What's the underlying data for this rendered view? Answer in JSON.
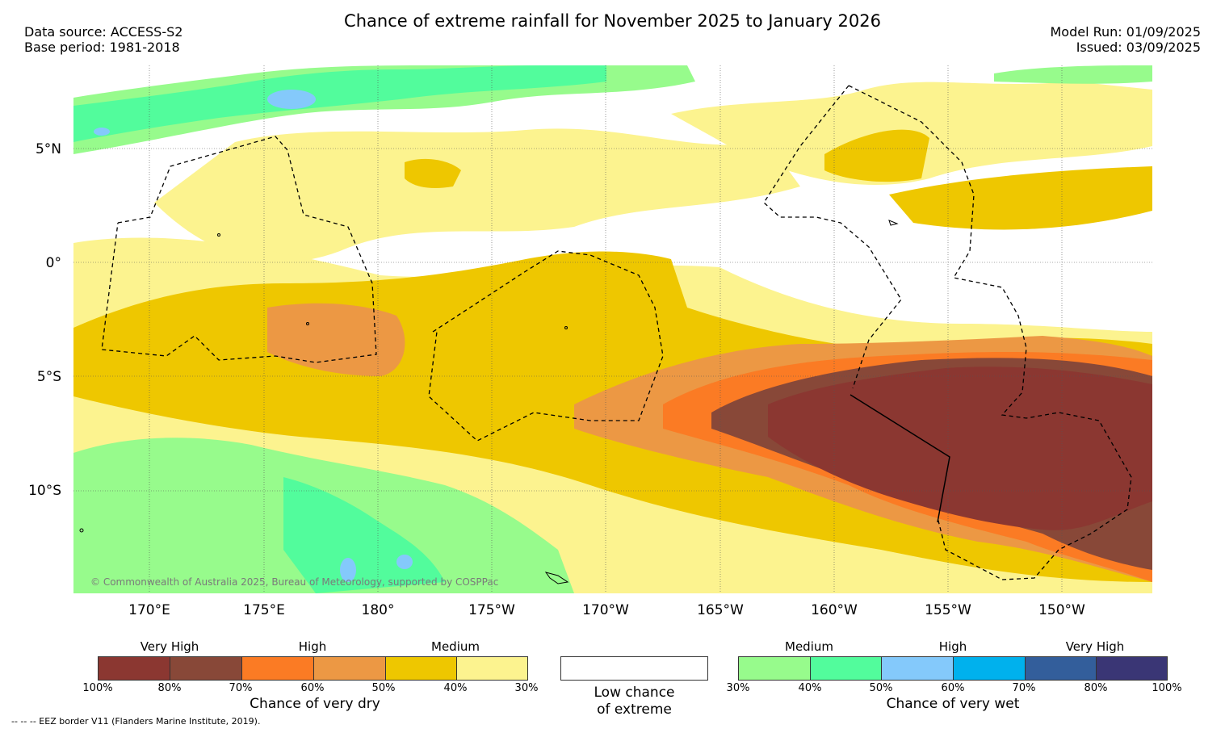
{
  "header": {
    "title": "Chance of extreme rainfall for November 2025 to January 2026",
    "data_source": "Data source: ACCESS-S2",
    "base_period": "Base period: 1981-2018",
    "model_run": "Model Run: 01/09/2025",
    "issued": "Issued: 03/09/2025"
  },
  "map": {
    "latitude_labels": [
      "5°N",
      "0°",
      "5°S",
      "10°S"
    ],
    "longitude_labels": [
      "170°E",
      "175°E",
      "180°",
      "175°W",
      "170°W",
      "165°W",
      "160°W",
      "155°W",
      "150°W"
    ],
    "copyright": "© Commonwealth of Australia 2025, Bureau of Meteorology, supported by COSPPac"
  },
  "legend": {
    "dry": {
      "groups": [
        "Very High",
        "High",
        "Medium"
      ],
      "ticks": [
        "100%",
        "80%",
        "70%",
        "60%",
        "50%",
        "40%",
        "30%"
      ],
      "colors": [
        "#8b3731",
        "#884838",
        "#fb7b24",
        "#ec9844",
        "#eec700",
        "#fcf38f"
      ],
      "caption": "Chance of very dry"
    },
    "neutral": {
      "line1": "Low chance",
      "line2": "of extreme"
    },
    "wet": {
      "groups": [
        "Medium",
        "High",
        "Very High"
      ],
      "ticks": [
        "30%",
        "40%",
        "50%",
        "60%",
        "70%",
        "80%",
        "100%"
      ],
      "colors": [
        "#97fb8c",
        "#52fc9c",
        "#84c9fb",
        "#00b1ed",
        "#335e9b",
        "#3a3675"
      ],
      "caption": "Chance of very wet"
    }
  },
  "footer": {
    "eez_note": "--  --  -- EEZ border V11 (Flanders Marine Institute, 2019)."
  }
}
